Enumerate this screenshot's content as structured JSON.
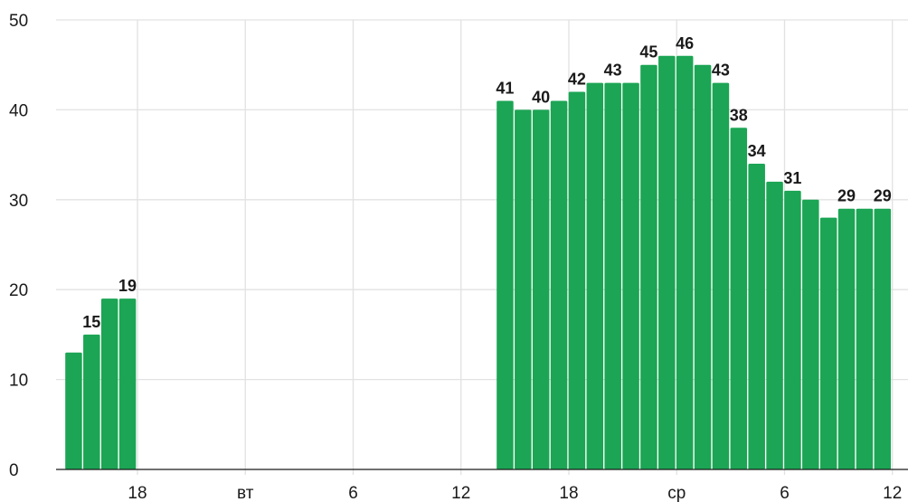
{
  "chart_data": {
    "type": "bar",
    "color": "#1ba554",
    "ylim": [
      0,
      50
    ],
    "y_ticks": [
      0,
      10,
      20,
      30,
      40,
      50
    ],
    "grid": true,
    "x_ticks": [
      {
        "hour": 18,
        "label": "18"
      },
      {
        "hour": 24,
        "label": "вт"
      },
      {
        "hour": 30,
        "label": "6"
      },
      {
        "hour": 36,
        "label": "12"
      },
      {
        "hour": 42,
        "label": "18"
      },
      {
        "hour": 48,
        "label": "ср"
      },
      {
        "hour": 54,
        "label": "6"
      },
      {
        "hour": 60,
        "label": "12"
      }
    ],
    "bars": [
      {
        "hour": 14,
        "value": 13,
        "label": ""
      },
      {
        "hour": 15,
        "value": 15,
        "label": "15"
      },
      {
        "hour": 16,
        "value": 19,
        "label": ""
      },
      {
        "hour": 17,
        "value": 19,
        "label": "19"
      },
      {
        "hour": 38,
        "value": 41,
        "label": "41"
      },
      {
        "hour": 39,
        "value": 40,
        "label": ""
      },
      {
        "hour": 40,
        "value": 40,
        "label": "40"
      },
      {
        "hour": 41,
        "value": 41,
        "label": ""
      },
      {
        "hour": 42,
        "value": 42,
        "label": "42"
      },
      {
        "hour": 43,
        "value": 43,
        "label": ""
      },
      {
        "hour": 44,
        "value": 43,
        "label": "43"
      },
      {
        "hour": 45,
        "value": 43,
        "label": ""
      },
      {
        "hour": 46,
        "value": 45,
        "label": "45"
      },
      {
        "hour": 47,
        "value": 46,
        "label": ""
      },
      {
        "hour": 48,
        "value": 46,
        "label": "46"
      },
      {
        "hour": 49,
        "value": 45,
        "label": ""
      },
      {
        "hour": 50,
        "value": 43,
        "label": "43"
      },
      {
        "hour": 51,
        "value": 38,
        "label": "38"
      },
      {
        "hour": 52,
        "value": 34,
        "label": "34"
      },
      {
        "hour": 53,
        "value": 32,
        "label": ""
      },
      {
        "hour": 54,
        "value": 31,
        "label": "31"
      },
      {
        "hour": 55,
        "value": 30,
        "label": ""
      },
      {
        "hour": 56,
        "value": 28,
        "label": ""
      },
      {
        "hour": 57,
        "value": 29,
        "label": "29"
      },
      {
        "hour": 58,
        "value": 29,
        "label": ""
      },
      {
        "hour": 59,
        "value": 29,
        "label": "29"
      }
    ]
  }
}
